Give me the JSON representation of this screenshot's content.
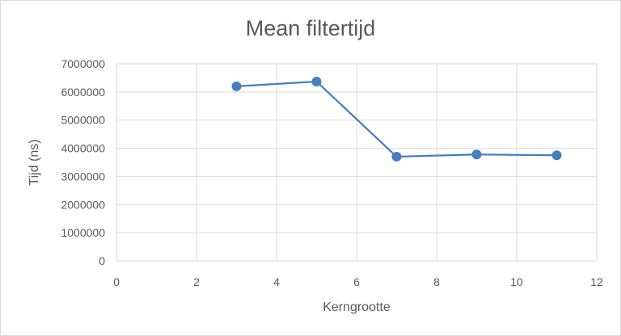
{
  "chart_data": {
    "type": "scatter",
    "title": "Mean filtertijd",
    "xlabel": "Kerngrootte",
    "ylabel": "Tijd (ns)",
    "xlim": [
      0,
      12
    ],
    "ylim": [
      0,
      7000000
    ],
    "x_ticks": [
      "0",
      "2",
      "4",
      "6",
      "8",
      "10",
      "12"
    ],
    "y_ticks": [
      "0",
      "1000000",
      "2000000",
      "3000000",
      "4000000",
      "5000000",
      "6000000",
      "7000000"
    ],
    "grid": true,
    "legend": "none",
    "lines": true,
    "markers": true,
    "series_color": "#4a7ebb",
    "series": [
      {
        "x": [
          3,
          5,
          7,
          9,
          11
        ],
        "y": [
          6200000,
          6370000,
          3700000,
          3780000,
          3750000
        ]
      }
    ]
  }
}
